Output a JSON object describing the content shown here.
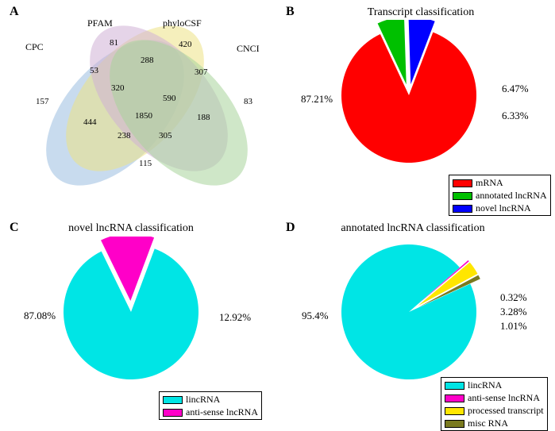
{
  "panels": {
    "A": {
      "label": "A"
    },
    "B": {
      "label": "B",
      "title": "Transcript classification"
    },
    "C": {
      "label": "C",
      "title": "novel lncRNA classification"
    },
    "D": {
      "label": "D",
      "title": "annotated lncRNA classification"
    }
  },
  "venn": {
    "sets": {
      "cpc": {
        "label": "CPC",
        "color": "#9bbde0"
      },
      "pfam": {
        "label": "PFAM",
        "color": "#ece285"
      },
      "phylocsf": {
        "label": "phyloCSF",
        "color": "#cfb1d5"
      },
      "cnci": {
        "label": "CNCI",
        "color": "#a7d49b"
      }
    },
    "regions": {
      "cpc_only": "157",
      "pfam_only": "81",
      "phylocsf_only": "420",
      "cnci_only": "83",
      "cpc_pfam": "53",
      "pfam_phylocsf": "288",
      "phylocsf_cnci": "307",
      "cpc_cnci": "115",
      "cpc_pfam_phylocsf": "320",
      "pfam_phylocsf_cnci": "590",
      "cpc_phylocsf_cnci": "238",
      "cpc_pfam_cnci": "305",
      "cpc_phylocsf": "444",
      "pfam_cnci": "188",
      "all": "1850"
    }
  },
  "pieB": {
    "slices": [
      {
        "key": "mRNA",
        "value": 87.21,
        "label": "87.21%",
        "color": "#ff0000"
      },
      {
        "key": "annotated lncRNA",
        "value": 6.47,
        "label": "6.47%",
        "color": "#00c000"
      },
      {
        "key": "novel lncRNA",
        "value": 6.33,
        "label": "6.33%",
        "color": "#0000ff"
      }
    ],
    "legend": [
      {
        "label": "mRNA",
        "color": "#ff0000"
      },
      {
        "label": "annotated lncRNA",
        "color": "#00c000"
      },
      {
        "label": "novel lncRNA",
        "color": "#0000ff"
      }
    ]
  },
  "pieC": {
    "slices": [
      {
        "key": "lincRNA",
        "value": 87.08,
        "label": "87.08%",
        "color": "#00e5e5"
      },
      {
        "key": "anti-sense lncRNA",
        "value": 12.92,
        "label": "12.92%",
        "color": "#ff00c8"
      }
    ],
    "legend": [
      {
        "label": "lincRNA",
        "color": "#00e5e5"
      },
      {
        "label": "anti-sense lncRNA",
        "color": "#ff00c8"
      }
    ]
  },
  "pieD": {
    "slices": [
      {
        "key": "lincRNA",
        "value": 95.4,
        "label": "95.4%",
        "color": "#00e5e5"
      },
      {
        "key": "anti-sense lncRNA",
        "value": 0.32,
        "label": "0.32%",
        "color": "#ff00c8"
      },
      {
        "key": "processed transcript",
        "value": 3.28,
        "label": "3.28%",
        "color": "#ffe600"
      },
      {
        "key": "misc RNA",
        "value": 1.01,
        "label": "1.01%",
        "color": "#7a7a1f"
      }
    ],
    "legend": [
      {
        "label": "lincRNA",
        "color": "#00e5e5"
      },
      {
        "label": "anti-sense lncRNA",
        "color": "#ff00c8"
      },
      {
        "label": "processed transcript",
        "color": "#ffe600"
      },
      {
        "label": "misc RNA",
        "color": "#7a7a1f"
      }
    ]
  },
  "style": {
    "background": "#ffffff",
    "font_family": "Times New Roman",
    "label_fontsize": 16,
    "title_fontsize": 14,
    "value_fontsize": 13,
    "legend_fontsize": 12
  }
}
